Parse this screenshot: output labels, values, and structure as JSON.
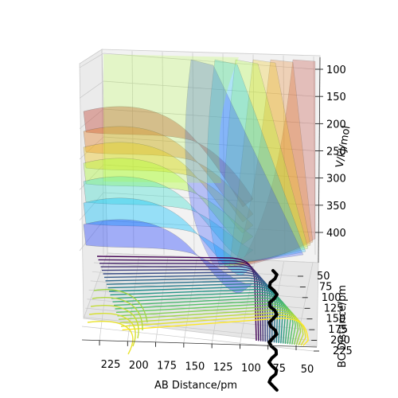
{
  "chart_data": {
    "type": "surface3d",
    "title": "",
    "xlabel": "AB Distance/pm",
    "ylabel": "BC Distance/pm",
    "zlabel": "V/kJ/mol",
    "x_ticks": [
      "225",
      "200",
      "175",
      "150",
      "125",
      "100",
      "75",
      "50"
    ],
    "y_ticks": [
      "50",
      "75",
      "100",
      "125",
      "150",
      "175",
      "200",
      "225"
    ],
    "z_ticks": [
      "100",
      "150",
      "200",
      "250",
      "300",
      "350",
      "400"
    ],
    "xlim": [
      240,
      40
    ],
    "ylim": [
      40,
      240
    ],
    "zlim": [
      80,
      440
    ],
    "contour_colormap": [
      "#440154",
      "#3b528b",
      "#21918c",
      "#5ec962",
      "#fde725"
    ],
    "surface_bands": [
      "#c0392b",
      "#e67e22",
      "#f1c40f",
      "#adff2f",
      "#40e0d0",
      "#00bfff",
      "#1e3cff"
    ],
    "trajectory_color": "#000000",
    "grid": true
  }
}
